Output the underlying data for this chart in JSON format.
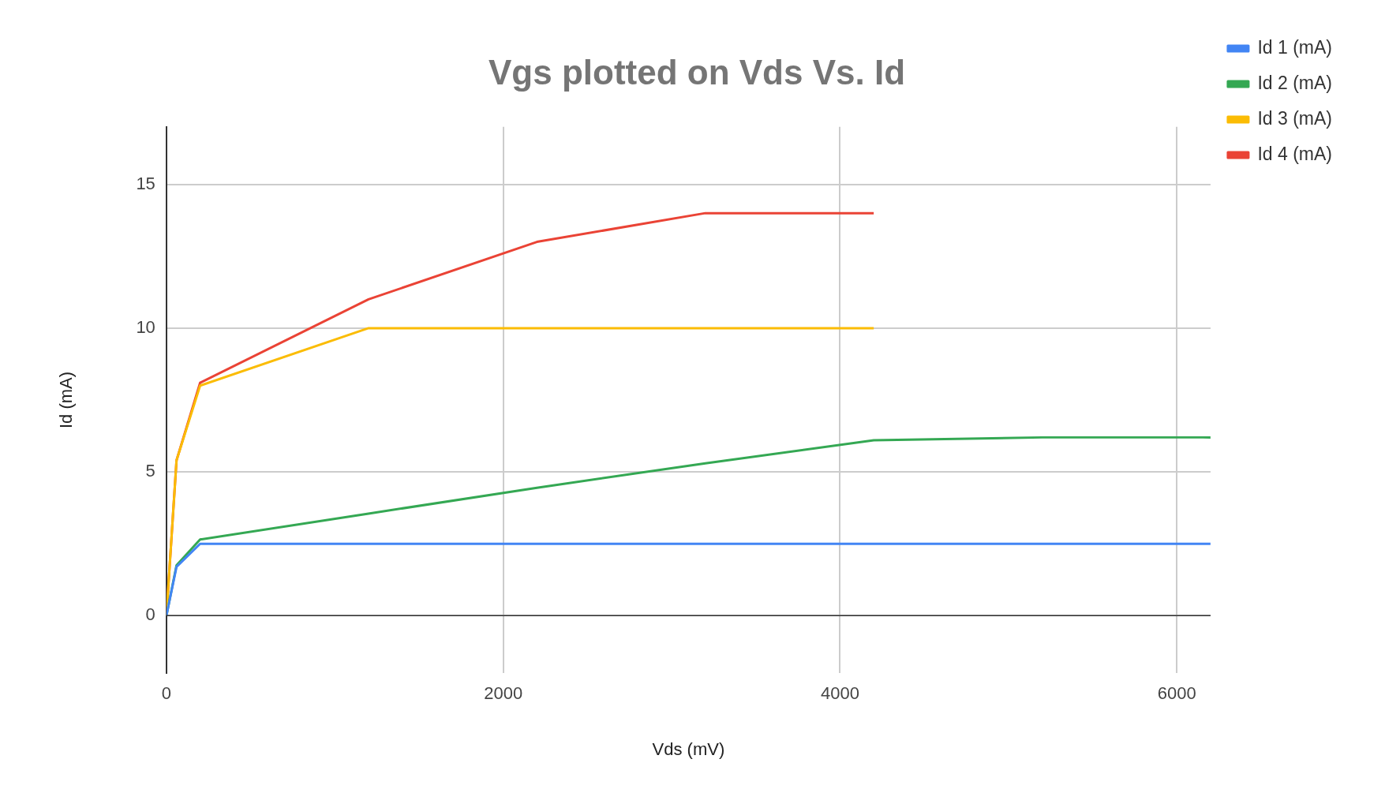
{
  "chart_data": {
    "type": "line",
    "title": "Vgs plotted on Vds Vs. Id",
    "xlabel": "Vds (mV)",
    "ylabel": "Id (mA)",
    "x": [
      0,
      60,
      200,
      1200,
      2200,
      3200,
      4200,
      5200,
      6200
    ],
    "series": [
      {
        "name": "Id 1 (mA)",
        "color": "#4285f4",
        "values": [
          0,
          1.7,
          2.5,
          2.5,
          2.5,
          2.5,
          2.5,
          2.5,
          2.5
        ]
      },
      {
        "name": "Id 2 (mA)",
        "color": "#34a853",
        "values": [
          0,
          1.75,
          2.65,
          3.55,
          4.45,
          5.3,
          6.1,
          6.2,
          6.2
        ]
      },
      {
        "name": "Id 3 (mA)",
        "color": "#fbbc04",
        "values": [
          0,
          5.4,
          8,
          10,
          10,
          10,
          10,
          null,
          null
        ]
      },
      {
        "name": "Id 4 (mA)",
        "color": "#ea4335",
        "values": [
          0,
          5.4,
          8.1,
          11,
          13,
          14,
          14,
          null,
          null
        ]
      }
    ],
    "xlim": [
      0,
      6200
    ],
    "xticks": [
      0,
      2000,
      4000,
      6000
    ],
    "ylim": [
      -2,
      17
    ],
    "yticks": [
      0,
      5,
      10,
      15
    ],
    "grid": true,
    "legend": "right",
    "marker": "none",
    "line_style": "solid"
  }
}
